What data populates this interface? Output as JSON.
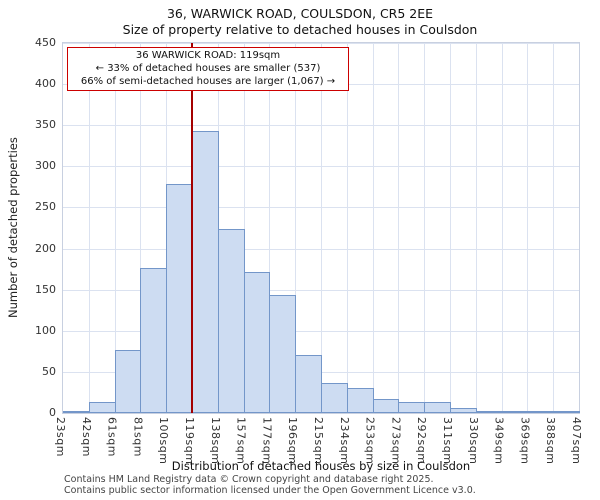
{
  "title": "36, WARWICK ROAD, COULSDON, CR5 2EE",
  "subtitle": "Size of property relative to detached houses in Coulsdon",
  "annotation": {
    "line1": "36 WARWICK ROAD: 119sqm",
    "line2": "← 33% of detached houses are smaller (537)",
    "line3": "66% of semi-detached houses are larger (1,067) →"
  },
  "footer": {
    "line1": "Contains HM Land Registry data © Crown copyright and database right 2025.",
    "line2": "Contains public sector information licensed under the Open Government Licence v3.0."
  },
  "chart_data": {
    "type": "bar",
    "title": "36, WARWICK ROAD, COULSDON, CR5 2EE",
    "subtitle": "Size of property relative to detached houses in Coulsdon",
    "xlabel": "Distribution of detached houses by size in Coulsdon",
    "ylabel": "Number of detached properties",
    "ylim": [
      0,
      450
    ],
    "ytick_step": 50,
    "grid": true,
    "bin_edge_labels": [
      "23sqm",
      "42sqm",
      "61sqm",
      "81sqm",
      "100sqm",
      "119sqm",
      "138sqm",
      "157sqm",
      "177sqm",
      "196sqm",
      "215sqm",
      "234sqm",
      "253sqm",
      "273sqm",
      "292sqm",
      "311sqm",
      "330sqm",
      "349sqm",
      "369sqm",
      "388sqm",
      "407sqm"
    ],
    "values": [
      2,
      13,
      77,
      176,
      278,
      343,
      224,
      171,
      143,
      71,
      37,
      30,
      17,
      13,
      14,
      6,
      2,
      1,
      1,
      1
    ],
    "marker": {
      "label": "119sqm",
      "tick_index": 5,
      "color": "#a40000"
    },
    "colors": {
      "bar_fill": "#cddcf2",
      "bar_border": "#7396c9",
      "grid": "#dbe2f0",
      "plot_border": "#c8d0e0",
      "annotation_border": "#cc0000"
    }
  }
}
